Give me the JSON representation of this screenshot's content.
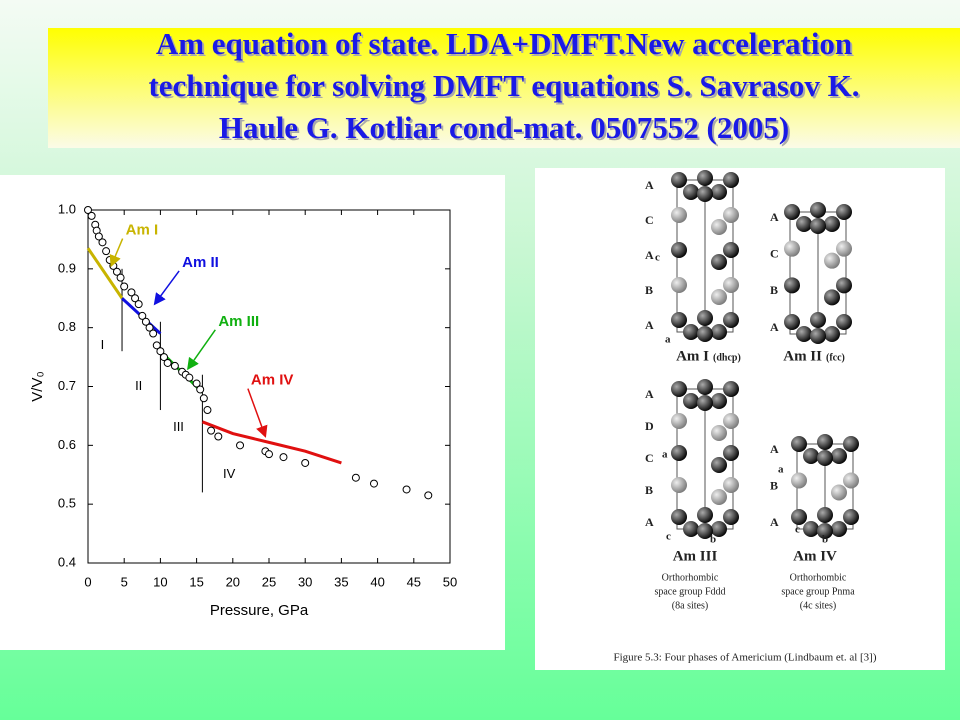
{
  "title_lines": [
    "Am equation of state. LDA+DMFT.New acceleration",
    "technique for solving DMFT equations S.  Savrasov K.",
    "Haule G. Kotliar cond-mat. 0507552 (2005)"
  ],
  "chart_data": {
    "type": "scatter",
    "xlabel": "Pressure, GPa",
    "ylabel": "V/V₀",
    "xlim": [
      0,
      50
    ],
    "ylim": [
      0.4,
      1.0
    ],
    "xticks": [
      0,
      5,
      10,
      15,
      20,
      25,
      30,
      35,
      40,
      45,
      50
    ],
    "yticks": [
      {
        "value": 0.4,
        "label": "0.4"
      },
      {
        "value": 0.5,
        "label": "0.5"
      },
      {
        "value": 0.6,
        "label": "0.6"
      },
      {
        "value": 0.7,
        "label": "0.7"
      },
      {
        "value": 0.8,
        "label": "0.8"
      },
      {
        "value": 0.9,
        "label": "0.9"
      },
      {
        "value": 1.0,
        "label": "1.0"
      }
    ],
    "x": [
      0,
      0.5,
      1,
      1.2,
      1.5,
      2,
      2.5,
      3,
      3.5,
      4,
      4.5,
      5,
      6,
      6.5,
      7,
      7.5,
      8,
      8.5,
      9,
      9.5,
      10,
      10.5,
      11,
      12,
      13,
      13.5,
      14,
      15,
      15.5,
      16,
      16.5,
      17,
      18,
      21,
      24.5,
      25,
      27,
      30,
      37,
      39.5,
      44,
      47
    ],
    "values": [
      1.0,
      0.99,
      0.975,
      0.965,
      0.955,
      0.945,
      0.93,
      0.915,
      0.905,
      0.895,
      0.885,
      0.87,
      0.86,
      0.85,
      0.84,
      0.82,
      0.81,
      0.8,
      0.79,
      0.77,
      0.76,
      0.75,
      0.74,
      0.735,
      0.725,
      0.72,
      0.715,
      0.705,
      0.695,
      0.68,
      0.66,
      0.625,
      0.615,
      0.6,
      0.59,
      0.585,
      0.58,
      0.57,
      0.545,
      0.535,
      0.525,
      0.515
    ],
    "series": [
      {
        "name": "Am I",
        "color": "#c8b400",
        "x": [
          0,
          4.7
        ],
        "values": [
          0.935,
          0.85
        ]
      },
      {
        "name": "Am II",
        "color": "#1010e0",
        "x": [
          4.7,
          10
        ],
        "values": [
          0.85,
          0.79
        ]
      },
      {
        "name": "Am III",
        "color": "#10b010",
        "x": [
          10,
          15.8
        ],
        "values": [
          0.76,
          0.69
        ]
      },
      {
        "name": "Am IV",
        "color": "#e01010",
        "x": [
          15.8,
          20,
          25,
          30,
          35
        ],
        "values": [
          0.64,
          0.62,
          0.605,
          0.59,
          0.57
        ]
      }
    ],
    "boundaries": [
      4.7,
      10,
      15.8
    ],
    "region_labels": [
      "I",
      "II",
      "III",
      "IV"
    ]
  },
  "figure": {
    "structures": [
      {
        "name": "Am I",
        "sub": "(dhcp)",
        "layers": [
          "A",
          "C",
          "A",
          "B",
          "A"
        ],
        "axes": [
          "c",
          "a"
        ]
      },
      {
        "name": "Am II",
        "sub": "(fcc)",
        "layers": [
          "A",
          "C",
          "B",
          "A"
        ],
        "axes": []
      },
      {
        "name": "Am III",
        "sub": "",
        "layers": [
          "A",
          "D",
          "C",
          "B",
          "A"
        ],
        "axes": [
          "a",
          "c",
          "b"
        ]
      },
      {
        "name": "Am IV",
        "sub": "",
        "layers": [
          "A",
          "B",
          "A"
        ],
        "axes": [
          "a",
          "c",
          "b"
        ]
      }
    ],
    "notes": [
      [
        "Orthorhombic",
        "space group Fddd",
        "(8a sites)"
      ],
      [
        "Orthorhombic",
        "space group Pnma",
        "(4c sites)"
      ]
    ],
    "caption": "Figure 5.3: Four phases of Americium (Lindbaum et. al [3])"
  }
}
